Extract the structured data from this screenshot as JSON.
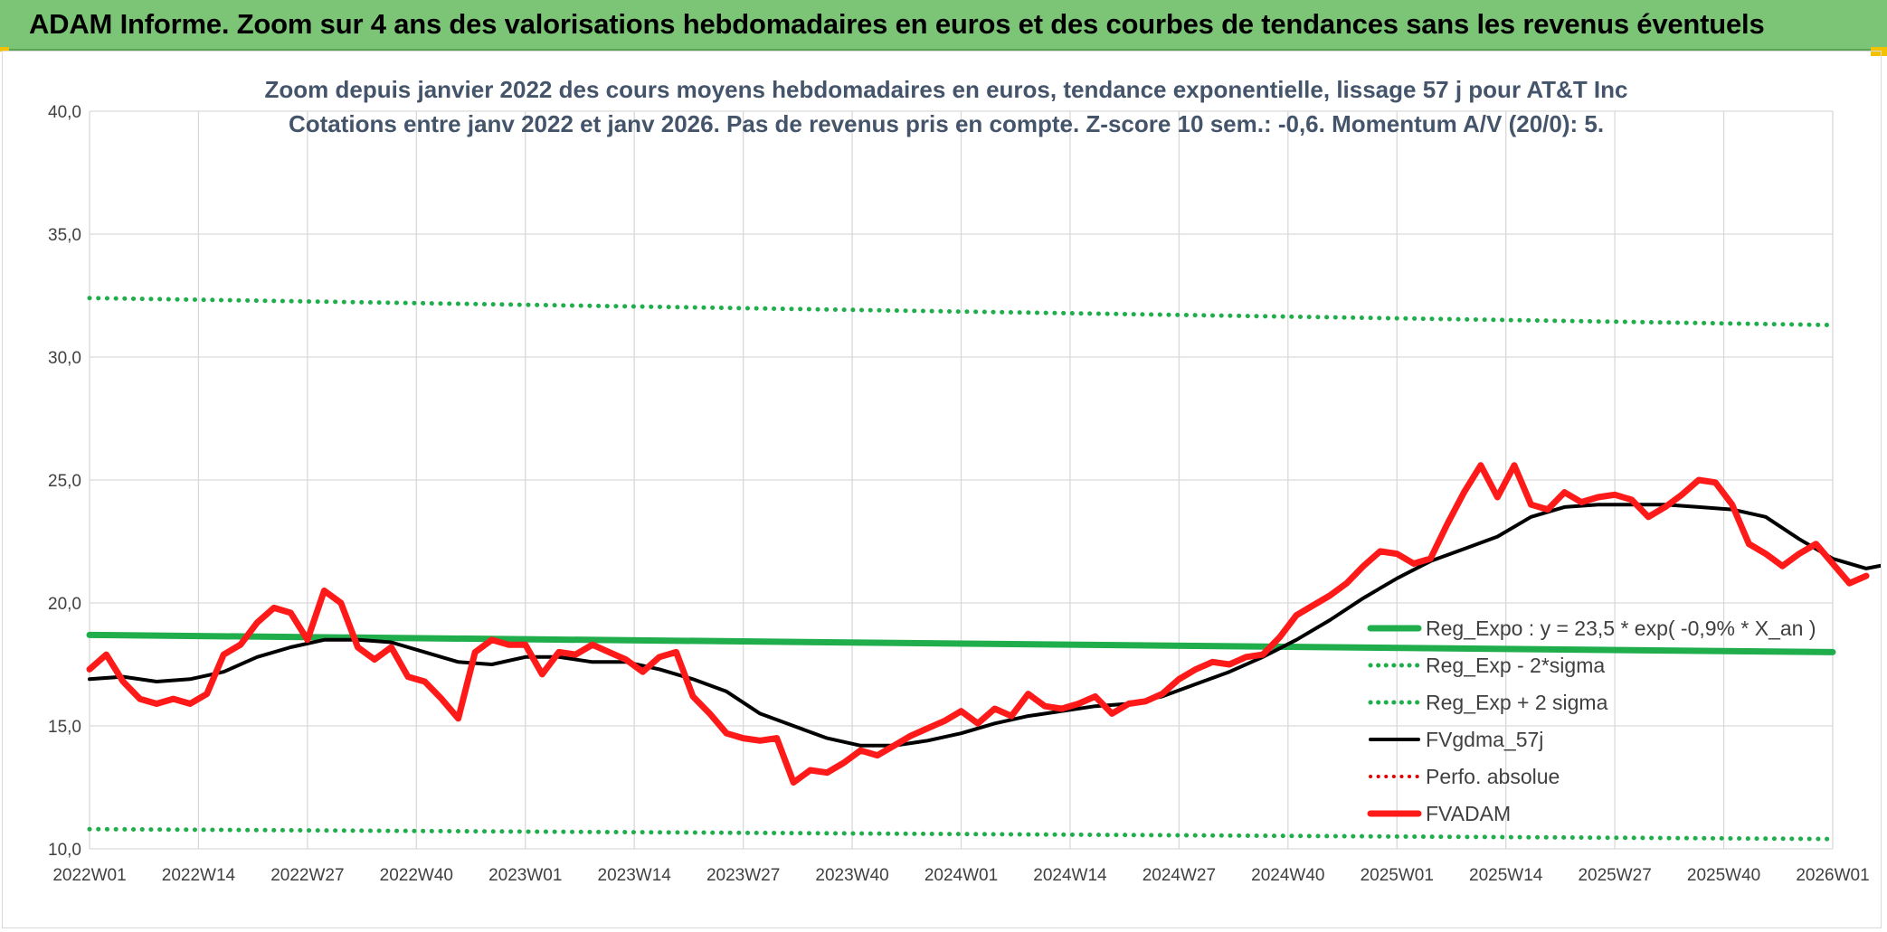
{
  "banner": {
    "title": "ADAM Informe. Zoom sur 4 ans des valorisations hebdomadaires en euros et des courbes de tendances sans les revenus éventuels"
  },
  "chart_data": {
    "type": "line",
    "title_line1": "Zoom depuis janvier 2022 des cours moyens hebdomadaires en euros, tendance exponentielle, lissage 57 j pour AT&T Inc",
    "title_line2": "Cotations entre janv 2022 et janv 2026. Pas de revenus pris en compte. Z-score 10 sem.: -0,6. Momentum A/V (20/0): 5.",
    "xlabel": "",
    "ylabel": "",
    "ylim": [
      10,
      40
    ],
    "yticks": [
      "10,0",
      "15,0",
      "20,0",
      "25,0",
      "30,0",
      "35,0",
      "40,0"
    ],
    "x_tick_labels": [
      "2022W01",
      "2022W14",
      "2022W27",
      "2022W40",
      "2023W01",
      "2023W14",
      "2023W27",
      "2023W40",
      "2024W01",
      "2024W14",
      "2024W27",
      "2024W40",
      "2025W01",
      "2025W14",
      "2025W27",
      "2025W40",
      "2026W01"
    ],
    "x_range_weeks": [
      0,
      208
    ],
    "grid": true,
    "legend_position": "bottom-right",
    "series": [
      {
        "name": "Reg_Expo : y = 23,5 * exp( -0,9% *  X_an )",
        "style": "solid",
        "color": "#1fae4b",
        "width": 7,
        "points": [
          [
            0,
            18.7
          ],
          [
            208,
            18.0
          ]
        ]
      },
      {
        "name": "Reg_Exp - 2*sigma",
        "style": "dotted",
        "color": "#1fae4b",
        "width": 5,
        "points": [
          [
            0,
            10.8
          ],
          [
            208,
            10.4
          ]
        ]
      },
      {
        "name": "Reg_Exp + 2 sigma",
        "style": "dotted",
        "color": "#1fae4b",
        "width": 5,
        "points": [
          [
            0,
            32.4
          ],
          [
            208,
            31.3
          ]
        ]
      },
      {
        "name": "FVgdma_57j",
        "style": "solid",
        "color": "#000000",
        "width": 4,
        "points": [
          [
            0,
            16.9
          ],
          [
            4,
            17.0
          ],
          [
            8,
            16.8
          ],
          [
            12,
            16.9
          ],
          [
            16,
            17.2
          ],
          [
            20,
            17.8
          ],
          [
            24,
            18.2
          ],
          [
            28,
            18.5
          ],
          [
            32,
            18.5
          ],
          [
            36,
            18.4
          ],
          [
            40,
            18.0
          ],
          [
            44,
            17.6
          ],
          [
            48,
            17.5
          ],
          [
            52,
            17.8
          ],
          [
            56,
            17.8
          ],
          [
            60,
            17.6
          ],
          [
            64,
            17.6
          ],
          [
            68,
            17.3
          ],
          [
            72,
            16.9
          ],
          [
            76,
            16.4
          ],
          [
            80,
            15.5
          ],
          [
            84,
            15.0
          ],
          [
            88,
            14.5
          ],
          [
            92,
            14.2
          ],
          [
            96,
            14.2
          ],
          [
            100,
            14.4
          ],
          [
            104,
            14.7
          ],
          [
            108,
            15.1
          ],
          [
            112,
            15.4
          ],
          [
            116,
            15.6
          ],
          [
            120,
            15.8
          ],
          [
            124,
            15.9
          ],
          [
            128,
            16.2
          ],
          [
            132,
            16.7
          ],
          [
            136,
            17.2
          ],
          [
            140,
            17.8
          ],
          [
            144,
            18.5
          ],
          [
            148,
            19.3
          ],
          [
            152,
            20.2
          ],
          [
            156,
            21.0
          ],
          [
            160,
            21.7
          ],
          [
            164,
            22.2
          ],
          [
            168,
            22.7
          ],
          [
            172,
            23.5
          ],
          [
            176,
            23.9
          ],
          [
            180,
            24.0
          ],
          [
            184,
            24.0
          ],
          [
            188,
            24.0
          ],
          [
            192,
            23.9
          ],
          [
            196,
            23.8
          ],
          [
            200,
            23.5
          ],
          [
            204,
            22.6
          ],
          [
            208,
            21.8
          ],
          [
            212,
            21.4
          ],
          [
            215,
            21.6
          ]
        ]
      },
      {
        "name": "Perfo. absolue",
        "style": "dotted",
        "color": "#e00000",
        "width": 4,
        "points": []
      },
      {
        "name": "FVADAM",
        "style": "solid",
        "color": "#ff1a1a",
        "width": 7,
        "points": [
          [
            0,
            17.3
          ],
          [
            2,
            17.9
          ],
          [
            4,
            16.8
          ],
          [
            6,
            16.1
          ],
          [
            8,
            15.9
          ],
          [
            10,
            16.1
          ],
          [
            12,
            15.9
          ],
          [
            14,
            16.3
          ],
          [
            16,
            17.9
          ],
          [
            18,
            18.3
          ],
          [
            20,
            19.2
          ],
          [
            22,
            19.8
          ],
          [
            24,
            19.6
          ],
          [
            26,
            18.5
          ],
          [
            28,
            20.5
          ],
          [
            30,
            20.0
          ],
          [
            32,
            18.2
          ],
          [
            34,
            17.7
          ],
          [
            36,
            18.2
          ],
          [
            38,
            17.0
          ],
          [
            40,
            16.8
          ],
          [
            42,
            16.1
          ],
          [
            44,
            15.3
          ],
          [
            46,
            18.0
          ],
          [
            48,
            18.5
          ],
          [
            50,
            18.3
          ],
          [
            52,
            18.3
          ],
          [
            54,
            17.1
          ],
          [
            56,
            18.0
          ],
          [
            58,
            17.9
          ],
          [
            60,
            18.3
          ],
          [
            62,
            18.0
          ],
          [
            64,
            17.7
          ],
          [
            66,
            17.2
          ],
          [
            68,
            17.8
          ],
          [
            70,
            18.0
          ],
          [
            72,
            16.2
          ],
          [
            74,
            15.5
          ],
          [
            76,
            14.7
          ],
          [
            78,
            14.5
          ],
          [
            80,
            14.4
          ],
          [
            82,
            14.5
          ],
          [
            84,
            12.7
          ],
          [
            86,
            13.2
          ],
          [
            88,
            13.1
          ],
          [
            90,
            13.5
          ],
          [
            92,
            14.0
          ],
          [
            94,
            13.8
          ],
          [
            96,
            14.2
          ],
          [
            98,
            14.6
          ],
          [
            100,
            14.9
          ],
          [
            102,
            15.2
          ],
          [
            104,
            15.6
          ],
          [
            106,
            15.1
          ],
          [
            108,
            15.7
          ],
          [
            110,
            15.4
          ],
          [
            112,
            16.3
          ],
          [
            114,
            15.8
          ],
          [
            116,
            15.7
          ],
          [
            118,
            15.9
          ],
          [
            120,
            16.2
          ],
          [
            122,
            15.5
          ],
          [
            124,
            15.9
          ],
          [
            126,
            16.0
          ],
          [
            128,
            16.3
          ],
          [
            130,
            16.9
          ],
          [
            132,
            17.3
          ],
          [
            134,
            17.6
          ],
          [
            136,
            17.5
          ],
          [
            138,
            17.8
          ],
          [
            140,
            17.9
          ],
          [
            142,
            18.6
          ],
          [
            144,
            19.5
          ],
          [
            146,
            19.9
          ],
          [
            148,
            20.3
          ],
          [
            150,
            20.8
          ],
          [
            152,
            21.5
          ],
          [
            154,
            22.1
          ],
          [
            156,
            22.0
          ],
          [
            158,
            21.6
          ],
          [
            160,
            21.8
          ],
          [
            162,
            23.2
          ],
          [
            164,
            24.5
          ],
          [
            166,
            25.6
          ],
          [
            168,
            24.3
          ],
          [
            170,
            25.6
          ],
          [
            172,
            24.0
          ],
          [
            174,
            23.8
          ],
          [
            176,
            24.5
          ],
          [
            178,
            24.1
          ],
          [
            180,
            24.3
          ],
          [
            182,
            24.4
          ],
          [
            184,
            24.2
          ],
          [
            186,
            23.5
          ],
          [
            188,
            23.9
          ],
          [
            190,
            24.4
          ],
          [
            192,
            25.0
          ],
          [
            194,
            24.9
          ],
          [
            196,
            24.0
          ],
          [
            198,
            22.4
          ],
          [
            200,
            22.0
          ],
          [
            202,
            21.5
          ],
          [
            204,
            22.0
          ],
          [
            206,
            22.4
          ],
          [
            208,
            21.6
          ],
          [
            210,
            20.8
          ],
          [
            212,
            21.1
          ]
        ]
      }
    ]
  }
}
